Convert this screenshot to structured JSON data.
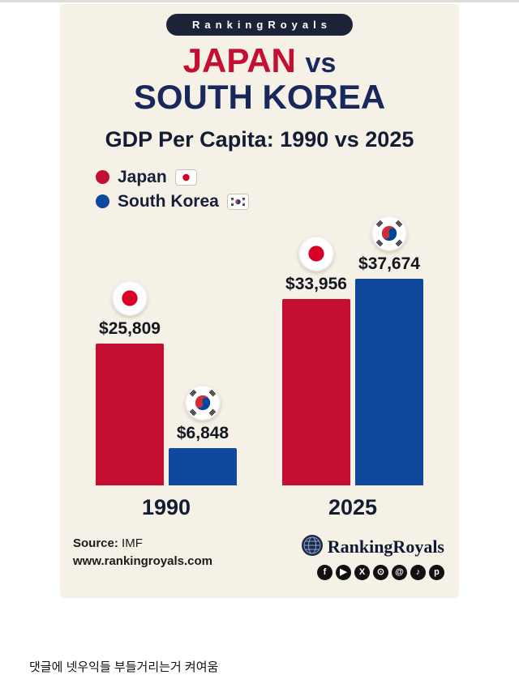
{
  "banner": {
    "text": "RankingRoyals"
  },
  "title": {
    "japan": "JAPAN",
    "vs": "vs",
    "korea": "SOUTH KOREA"
  },
  "subtitle": "GDP Per Capita: 1990 vs 2025",
  "legend": {
    "japan": {
      "label": "Japan",
      "color": "#c40f33"
    },
    "korea": {
      "label": "South Korea",
      "color": "#10489d"
    }
  },
  "chart_data": {
    "type": "bar",
    "title": "GDP Per Capita: 1990 vs 2025",
    "categories": [
      "1990",
      "2025"
    ],
    "series": [
      {
        "name": "Japan",
        "color": "#c40f33",
        "values": [
          25809,
          33956
        ],
        "labels": [
          "$25,809",
          "$33,956"
        ]
      },
      {
        "name": "South Korea",
        "color": "#10489d",
        "values": [
          6848,
          37674
        ],
        "labels": [
          "$6,848",
          "$37,674"
        ]
      }
    ],
    "unit": "USD",
    "ylim": [
      0,
      40000
    ],
    "legend_position": "top-left",
    "grid": false,
    "source": "IMF"
  },
  "footer": {
    "source_label": "Source:",
    "source_value": "IMF",
    "website": "www.rankingroyals.com",
    "brand": "RankingRoyals",
    "social": [
      {
        "name": "facebook",
        "glyph": "f"
      },
      {
        "name": "youtube",
        "glyph": "▶"
      },
      {
        "name": "x",
        "glyph": "X"
      },
      {
        "name": "instagram",
        "glyph": "⊙"
      },
      {
        "name": "threads",
        "glyph": "@"
      },
      {
        "name": "tiktok",
        "glyph": "♪"
      },
      {
        "name": "pinterest",
        "glyph": "p"
      }
    ]
  },
  "caption": "댓글에 넷우익들 부들거리는거 켜여움"
}
